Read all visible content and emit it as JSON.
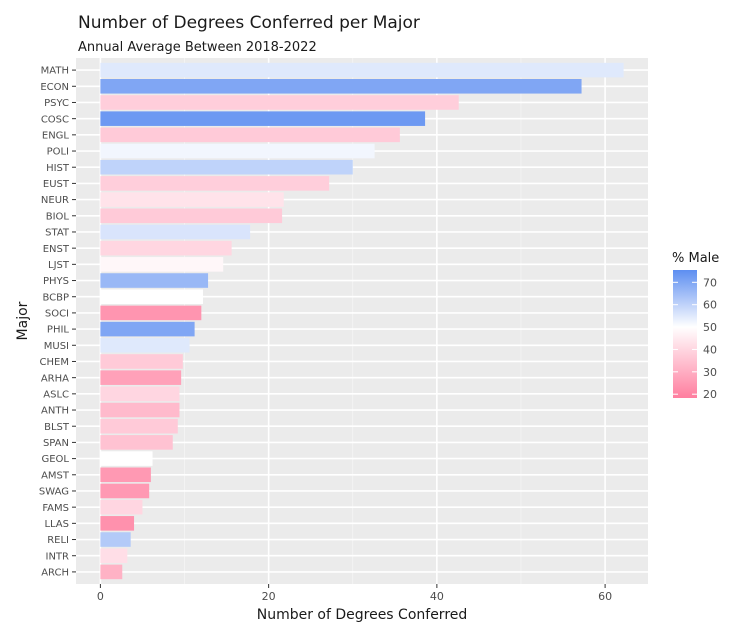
{
  "chart_data": {
    "type": "bar",
    "orientation": "horizontal",
    "title": "Number of Degrees Conferred per Major",
    "subtitle": "Annual Average Between 2018-2022",
    "xlabel": "Number of Degrees Conferred",
    "ylabel": "Major",
    "xlim": [
      -2.9,
      65.1
    ],
    "xticks": [
      0,
      20,
      40,
      60
    ],
    "grid": true,
    "legend": {
      "title": "% Male",
      "position": "right",
      "ticks": [
        70,
        60,
        50,
        40,
        30,
        20
      ],
      "range": [
        18.3,
        75.5
      ],
      "colors": {
        "low": "#ff7e9f",
        "mid": "#ffffff",
        "high": "#5d8ef1"
      }
    },
    "categories": [
      "MATH",
      "ECON",
      "PSYC",
      "COSC",
      "ENGL",
      "POLI",
      "HIST",
      "EUST",
      "NEUR",
      "BIOL",
      "STAT",
      "ENST",
      "LJST",
      "PHYS",
      "BCBP",
      "SOCI",
      "PHIL",
      "MUSI",
      "CHEM",
      "ARHA",
      "ASLC",
      "ANTH",
      "BLST",
      "SPAN",
      "GEOL",
      "AMST",
      "SWAG",
      "FAMS",
      "LLAS",
      "RELI",
      "INTR",
      "ARCH"
    ],
    "values": [
      62.2,
      57.2,
      42.6,
      38.6,
      35.6,
      32.6,
      30.0,
      27.2,
      21.8,
      21.6,
      17.8,
      15.6,
      14.6,
      12.8,
      12.2,
      12.0,
      11.2,
      10.6,
      9.8,
      9.6,
      9.4,
      9.4,
      9.2,
      8.6,
      6.2,
      6.0,
      5.8,
      5.0,
      4.0,
      3.6,
      3.2,
      2.6
    ],
    "percent_male": [
      55,
      70,
      38,
      73,
      37,
      52,
      60,
      38,
      43,
      37,
      56,
      40,
      48,
      66,
      50,
      24,
      70,
      55,
      37,
      27,
      40,
      33,
      37,
      35,
      50,
      25,
      25,
      40,
      23,
      62,
      42,
      31
    ]
  }
}
